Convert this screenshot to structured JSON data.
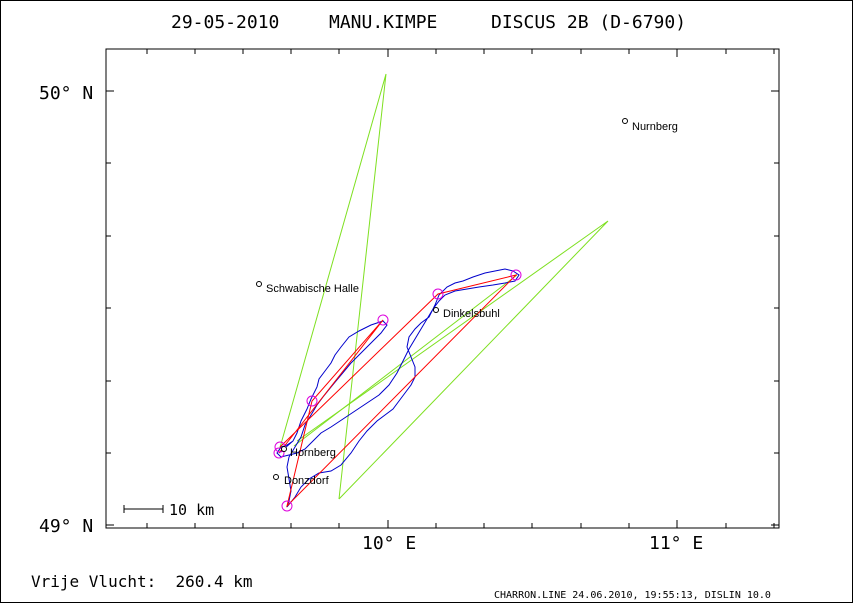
{
  "header": {
    "date": "29-05-2010",
    "pilot": "MANU.KIMPE",
    "glider": "DISCUS 2B (D-6790)"
  },
  "axes": {
    "lat_labels": [
      "50° N",
      "49° N"
    ],
    "lon_labels": [
      "10° E",
      "11° E"
    ]
  },
  "places": [
    {
      "name": "Nurnberg"
    },
    {
      "name": "Schwabische Halle"
    },
    {
      "name": "Dinkelsbuhl"
    },
    {
      "name": "Hornberg"
    },
    {
      "name": "Donzdorf"
    }
  ],
  "scale_bar": {
    "label": "10 km"
  },
  "footer": {
    "distance_text": "Vrije Vlucht:  260.4 km",
    "credit": "CHARRON.LINE 24.06.2010, 19:55:13, DISLIN 10.0"
  },
  "colors": {
    "sector_lines": "#7ee020",
    "route": "#ff0000",
    "track": "#0000cc",
    "turnpoints": "#dd00dd",
    "axes": "#000000"
  }
}
